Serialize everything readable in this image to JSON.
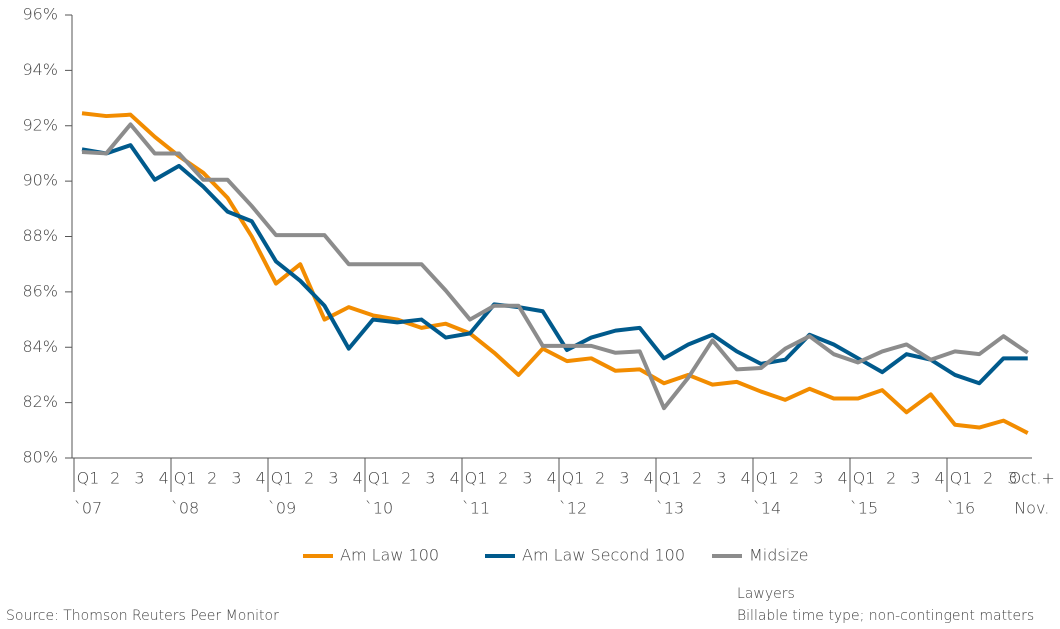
{
  "chart_data": {
    "type": "line",
    "categories": [
      "Q1",
      "2",
      "3",
      "4",
      "Q1",
      "2",
      "3",
      "4",
      "Q1",
      "2",
      "3",
      "4",
      "Q1",
      "2",
      "3",
      "4",
      "Q1",
      "2",
      "3",
      "4",
      "Q1",
      "2",
      "3",
      "4",
      "Q1",
      "2",
      "3",
      "4",
      "Q1",
      "2",
      "3",
      "4",
      "Q1",
      "2",
      "3",
      "4",
      "Q1",
      "2",
      "3",
      "Oct.+"
    ],
    "year_labels": [
      "`07",
      null,
      null,
      null,
      "`08",
      null,
      null,
      null,
      "`09",
      null,
      null,
      null,
      "`10",
      null,
      null,
      null,
      "`11",
      null,
      null,
      null,
      "`12",
      null,
      null,
      null,
      "`13",
      null,
      null,
      null,
      "`14",
      null,
      null,
      null,
      "`15",
      null,
      null,
      null,
      "`16",
      null,
      null,
      "Nov."
    ],
    "series": [
      {
        "name": "Am Law 100",
        "color": "#f28c00",
        "values": [
          92.45,
          92.35,
          92.4,
          91.6,
          90.9,
          90.3,
          89.4,
          88.0,
          86.3,
          87.0,
          85.0,
          85.45,
          85.15,
          85.0,
          84.7,
          84.85,
          84.5,
          83.8,
          83.0,
          83.95,
          83.5,
          83.6,
          83.15,
          83.2,
          82.7,
          83.0,
          82.65,
          82.75,
          82.4,
          82.1,
          82.5,
          82.15,
          82.15,
          82.45,
          81.65,
          82.3,
          81.2,
          81.1,
          81.35,
          80.9
        ]
      },
      {
        "name": "Am Law Second 100",
        "color": "#005a8c",
        "values": [
          91.15,
          91.0,
          91.3,
          90.05,
          90.55,
          89.8,
          88.9,
          88.55,
          87.1,
          86.4,
          85.5,
          83.95,
          85.0,
          84.9,
          85.0,
          84.35,
          84.5,
          85.55,
          85.45,
          85.3,
          83.9,
          84.35,
          84.6,
          84.7,
          83.6,
          84.1,
          84.45,
          83.85,
          83.4,
          83.55,
          84.45,
          84.1,
          83.6,
          83.1,
          83.75,
          83.55,
          83.0,
          82.7,
          83.6,
          83.6
        ]
      },
      {
        "name": "Midsize",
        "color": "#8c8c8c",
        "values": [
          91.05,
          91.0,
          92.05,
          91.0,
          91.0,
          90.05,
          90.05,
          89.1,
          88.05,
          88.05,
          88.05,
          87.0,
          87.0,
          87.0,
          87.0,
          86.05,
          85.0,
          85.5,
          85.5,
          84.05,
          84.05,
          84.05,
          83.8,
          83.85,
          81.8,
          82.9,
          84.25,
          83.2,
          83.25,
          83.95,
          84.4,
          83.75,
          83.45,
          83.85,
          84.1,
          83.55,
          83.85,
          83.75,
          84.4,
          83.8
        ]
      }
    ],
    "ylim": [
      80,
      96
    ],
    "yticks": [
      {
        "value": 80,
        "label": "80%"
      },
      {
        "value": 82,
        "label": "82%"
      },
      {
        "value": 84,
        "label": "84%"
      },
      {
        "value": 86,
        "label": "86%"
      },
      {
        "value": 88,
        "label": "88%"
      },
      {
        "value": 90,
        "label": "90%"
      },
      {
        "value": 92,
        "label": "92%"
      },
      {
        "value": 94,
        "label": "94%"
      },
      {
        "value": 96,
        "label": "96%"
      }
    ],
    "legend": "bottom",
    "source": "Source: Thomson Reuters Peer Monitor",
    "notes": [
      "Lawyers",
      "Billable time type; non-contingent matters"
    ]
  }
}
